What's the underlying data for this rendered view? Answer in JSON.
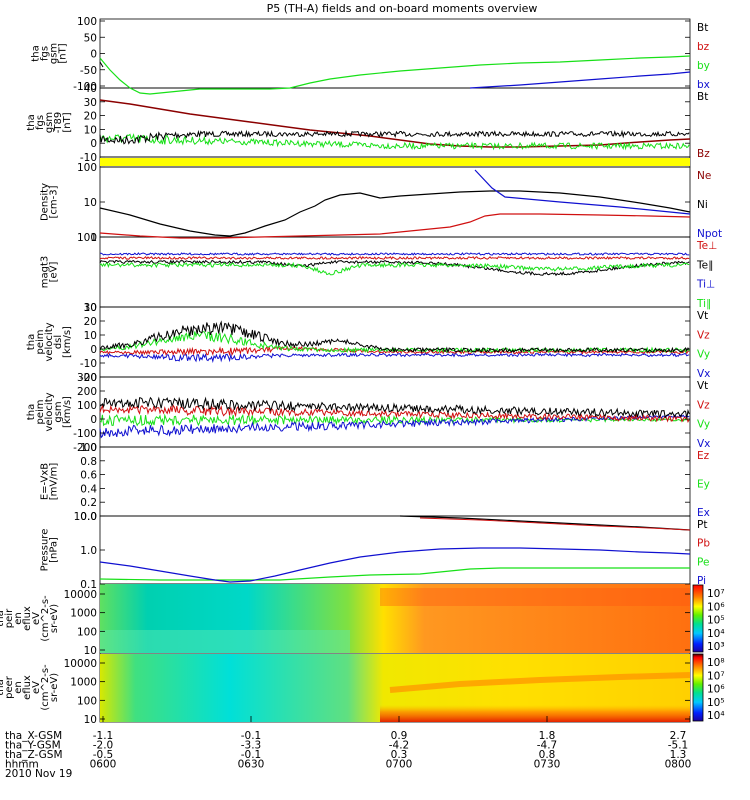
{
  "title": "P5 (TH-A) fields and on-board moments overview",
  "date": "2010 Nov 19",
  "colors": {
    "black": "#000000",
    "red": "#d01010",
    "green": "#18e018",
    "blue": "#1010d0",
    "darkred": "#8b0000",
    "yellow": "#ffff00"
  },
  "chart_data": {
    "type": "line",
    "title": "P5 (TH-A) fields and on-board moments overview",
    "x_ticks": [
      "0600",
      "0630",
      "0700",
      "0730",
      "0800"
    ],
    "ephemeris": [
      {
        "label": "tha_X-GSM",
        "values": [
          "-1.1",
          "-0.1",
          "0.9",
          "1.8",
          "2.7"
        ]
      },
      {
        "label": "tha_Y-GSM",
        "values": [
          "-2.0",
          "-3.3",
          "-4.2",
          "-4.7",
          "-5.1"
        ]
      },
      {
        "label": "tha_Z-GSM",
        "values": [
          "-0.5",
          "-0.1",
          "0.3",
          "0.8",
          "1.3"
        ]
      },
      {
        "label": "hhmm",
        "values": [
          "0600",
          "0630",
          "0700",
          "0730",
          "0800"
        ]
      }
    ],
    "panels": [
      {
        "ylabel": [
          "tha",
          "fgs",
          "gsm",
          "[nT]"
        ],
        "yticks": [
          "100",
          "50",
          "0",
          "-50",
          "-100"
        ],
        "legend": [
          {
            "name": "Bt",
            "color": "black"
          },
          {
            "name": "bz",
            "color": "red"
          },
          {
            "name": "by",
            "color": "green"
          },
          {
            "name": "bx",
            "color": "blue"
          }
        ]
      },
      {
        "ylabel": [
          "tha",
          "fgs",
          "gsm",
          "-T89",
          "[nT]"
        ],
        "yticks": [
          "40",
          "30",
          "20",
          "10",
          "0",
          "-10"
        ],
        "legend": [
          {
            "name": "Bt",
            "color": "black"
          },
          {
            "name": "Bz",
            "color": "darkred"
          }
        ]
      },
      {
        "ylabel": [],
        "yticks": [],
        "legend": []
      },
      {
        "ylabel": [
          "Density",
          "[cm-3]"
        ],
        "yticks": [
          "100",
          "10",
          "1"
        ],
        "legend": [
          {
            "name": "Ne",
            "color": "darkred"
          },
          {
            "name": "Ni",
            "color": "black"
          },
          {
            "name": "Npot",
            "color": "blue"
          }
        ]
      },
      {
        "ylabel": [
          "magt3",
          "[eV]"
        ],
        "yticks": [
          "100",
          "10"
        ],
        "legend": [
          {
            "name": "Te⊥",
            "color": "red"
          },
          {
            "name": "Te∥",
            "color": "black"
          },
          {
            "name": "Ti⊥",
            "color": "blue"
          },
          {
            "name": "Ti∥",
            "color": "green"
          }
        ]
      },
      {
        "ylabel": [
          "tha",
          "peim",
          "velocity",
          "dsl",
          "[km/s]"
        ],
        "yticks": [
          "30",
          "20",
          "10",
          "0",
          "-10",
          "-20"
        ],
        "legend": [
          {
            "name": "Vt",
            "color": "black"
          },
          {
            "name": "Vz",
            "color": "red"
          },
          {
            "name": "Vy",
            "color": "green"
          },
          {
            "name": "Vx",
            "color": "blue"
          }
        ]
      },
      {
        "ylabel": [
          "tha",
          "peim",
          "velocity",
          "gsm",
          "[km/s]"
        ],
        "yticks": [
          "300",
          "200",
          "100",
          "0",
          "-100",
          "-200"
        ],
        "legend": [
          {
            "name": "Vt",
            "color": "black"
          },
          {
            "name": "Vz",
            "color": "red"
          },
          {
            "name": "Vy",
            "color": "green"
          },
          {
            "name": "Vx",
            "color": "blue"
          }
        ]
      },
      {
        "ylabel": [
          "E=-VxB",
          "[mV/m]"
        ],
        "yticks": [
          "1.0",
          "0.8",
          "0.6",
          "0.4",
          "0.2",
          "0.0"
        ],
        "legend": [
          {
            "name": "Ez",
            "color": "red"
          },
          {
            "name": "Ey",
            "color": "green"
          },
          {
            "name": "Ex",
            "color": "blue"
          }
        ]
      },
      {
        "ylabel": [
          "Pressure",
          "[nPa]"
        ],
        "yticks": [
          "10.0",
          "1.0",
          "0.1"
        ],
        "legend": [
          {
            "name": "Pt",
            "color": "black"
          },
          {
            "name": "Pb",
            "color": "red"
          },
          {
            "name": "Pe",
            "color": "green"
          },
          {
            "name": "Pi",
            "color": "blue"
          }
        ]
      },
      {
        "ylabel": [
          "tha",
          "peir",
          "en",
          "eflux",
          "eV",
          "(cm^2-s-",
          "sr-eV)"
        ],
        "yticks": [
          "10000",
          "1000",
          "100",
          "10"
        ],
        "colorbar": [
          "10⁷",
          "10⁶",
          "10⁵",
          "10⁴",
          "10³"
        ],
        "legend": []
      },
      {
        "ylabel": [
          "tha",
          "peer",
          "en",
          "eflux",
          "eV",
          "(cm^2-s-",
          "sr-eV)"
        ],
        "yticks": [
          "10000",
          "1000",
          "100",
          "10"
        ],
        "colorbar": [
          "10⁸",
          "10⁷",
          "10⁶",
          "10⁵",
          "10⁴"
        ],
        "legend": []
      }
    ]
  }
}
